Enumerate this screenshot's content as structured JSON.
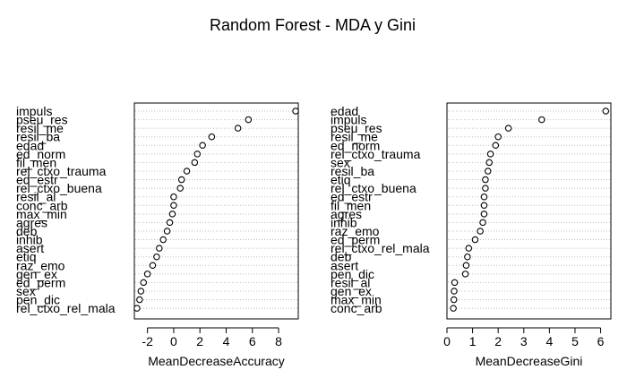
{
  "title": "Random Forest - MDA y Gini",
  "chart_data": [
    {
      "type": "scatter",
      "xlabel": "MeanDecreaseAccuracy",
      "xlim": [
        -3,
        9.5
      ],
      "xticks": [
        -2,
        0,
        2,
        4,
        6,
        8
      ],
      "variables": [
        "impuls",
        "pseu_res",
        "resil_me",
        "resil_ba",
        "edad",
        "ed_norm",
        "fil_men",
        "rel_ctxo_trauma",
        "ed_estr",
        "rel_ctxo_buena",
        "resil_al",
        "conc_arb",
        "max_min",
        "agres",
        "deb",
        "inhib",
        "asert",
        "etiq",
        "raz_emo",
        "gen_ex",
        "ed_perm",
        "sex",
        "pen_dic",
        "rel_ctxo_rel_mala"
      ],
      "values": [
        9.3,
        5.7,
        4.9,
        2.9,
        2.2,
        1.8,
        1.6,
        1.0,
        0.6,
        0.5,
        0.0,
        0.0,
        -0.1,
        -0.3,
        -0.5,
        -0.8,
        -1.1,
        -1.3,
        -1.6,
        -2.0,
        -2.3,
        -2.5,
        -2.6,
        -2.8
      ]
    },
    {
      "type": "scatter",
      "xlabel": "MeanDecreaseGini",
      "xlim": [
        0,
        6.4
      ],
      "xticks": [
        0,
        1,
        2,
        3,
        4,
        5,
        6
      ],
      "variables": [
        "edad",
        "impuls",
        "pseu_res",
        "resil_me",
        "ed_norm",
        "rel_ctxo_trauma",
        "sex",
        "resil_ba",
        "etiq",
        "rel_ctxo_buena",
        "ed_estr",
        "fil_men",
        "agres",
        "inhib",
        "raz_emo",
        "ed_perm",
        "rel_ctxo_rel_mala",
        "deb",
        "asert",
        "pen_dic",
        "resil_al",
        "gen_ex",
        "max_min",
        "conc_arb"
      ],
      "values": [
        6.2,
        3.7,
        2.4,
        2.0,
        1.9,
        1.7,
        1.65,
        1.6,
        1.5,
        1.5,
        1.45,
        1.45,
        1.45,
        1.4,
        1.3,
        1.1,
        0.85,
        0.8,
        0.75,
        0.72,
        0.3,
        0.28,
        0.27,
        0.25
      ]
    }
  ]
}
